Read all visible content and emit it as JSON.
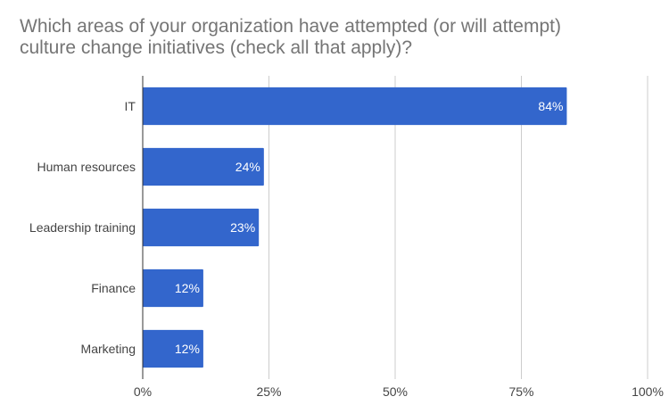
{
  "chart_data": {
    "type": "bar",
    "orientation": "horizontal",
    "title": [
      "Which areas of your organization have attempted (or will attempt)",
      "culture change initiatives (check all that apply)?"
    ],
    "categories": [
      "IT",
      "Human resources",
      "Leadership training",
      "Finance",
      "Marketing"
    ],
    "values": [
      84,
      24,
      23,
      12,
      12
    ],
    "value_labels": [
      "84%",
      "24%",
      "23%",
      "12%",
      "12%"
    ],
    "xlim": [
      0,
      100
    ],
    "x_ticks": [
      0,
      25,
      50,
      75,
      100
    ],
    "x_tick_labels": [
      "0%",
      "25%",
      "50%",
      "75%",
      "100%"
    ],
    "bar_color": "#3366cc",
    "grid": true,
    "legend": "none"
  }
}
